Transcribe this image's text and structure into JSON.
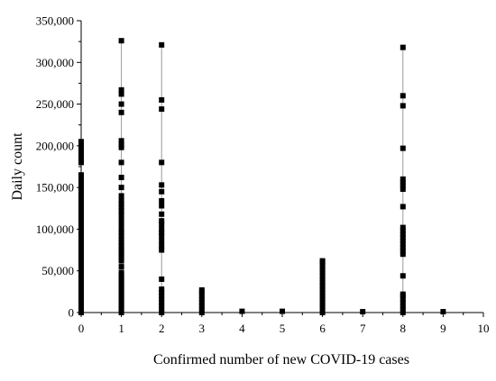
{
  "chart_data": {
    "type": "scatter",
    "title": "",
    "xlabel": "Confirmed number of new COVID-19 cases",
    "ylabel": "Daily count",
    "xlim": [
      0,
      10
    ],
    "ylim": [
      0,
      350000
    ],
    "x_ticks": [
      0,
      1,
      2,
      3,
      4,
      5,
      6,
      7,
      8,
      9,
      10
    ],
    "y_ticks": [
      0,
      50000,
      100000,
      150000,
      200000,
      250000,
      300000,
      350000
    ],
    "x_tick_labels": [
      "0",
      "1",
      "2",
      "3",
      "4",
      "5",
      "6",
      "7",
      "8",
      "9",
      "10"
    ],
    "y_tick_labels": [
      "0",
      "50,000",
      "100,000",
      "150,000",
      "200,000",
      "250,000",
      "300,000",
      "350,000"
    ],
    "grid": false,
    "legend": "none",
    "marker": "square",
    "marker_color": "#000000",
    "range_line_color": "#9a9a9a",
    "columns": [
      {
        "x": 0,
        "y": [
          0,
          5000,
          10000,
          15000,
          20000,
          25000,
          30000,
          35000,
          40000,
          45000,
          50000,
          55000,
          60000,
          65000,
          70000,
          75000,
          80000,
          85000,
          90000,
          95000,
          100000,
          105000,
          110000,
          115000,
          120000,
          125000,
          130000,
          135000,
          140000,
          145000,
          150000,
          155000,
          160000,
          165000,
          180000,
          185000,
          190000,
          195000,
          200000,
          205000
        ]
      },
      {
        "x": 1,
        "y": [
          0,
          3000,
          6000,
          9000,
          12000,
          15000,
          18000,
          21000,
          24000,
          27000,
          30000,
          33000,
          36000,
          39000,
          42000,
          45000,
          48000,
          55000,
          62000,
          66000,
          70000,
          73000,
          76000,
          80000,
          84000,
          88000,
          92000,
          96000,
          100000,
          106000,
          112000,
          118000,
          122000,
          126000,
          130000,
          134000,
          140000,
          150000,
          162000,
          180000,
          198000,
          201000,
          206000,
          240000,
          250000,
          262000,
          267000,
          326000
        ]
      },
      {
        "x": 2,
        "y": [
          0,
          4000,
          8000,
          12000,
          16000,
          20000,
          24000,
          28000,
          40000,
          75000,
          80000,
          86000,
          92000,
          96000,
          100000,
          106000,
          110000,
          118000,
          128000,
          134000,
          145000,
          153000,
          180000,
          244000,
          255000,
          321000
        ]
      },
      {
        "x": 3,
        "y": [
          0,
          4000,
          8000,
          12000,
          16000,
          20000,
          24000,
          27000
        ]
      },
      {
        "x": 4,
        "y": [
          1500
        ]
      },
      {
        "x": 5,
        "y": [
          1500
        ]
      },
      {
        "x": 6,
        "y": [
          0,
          4000,
          8000,
          12000,
          16000,
          20000,
          24000,
          28000,
          32000,
          36000,
          40000,
          44000,
          48000,
          52000,
          56000,
          60000,
          62000
        ]
      },
      {
        "x": 7,
        "y": [
          1000
        ]
      },
      {
        "x": 8,
        "y": [
          0,
          4000,
          8000,
          12000,
          16000,
          20000,
          22000,
          44000,
          70000,
          74000,
          78000,
          82000,
          86000,
          90000,
          94000,
          98000,
          102000,
          127000,
          148000,
          152000,
          156000,
          160000,
          197000,
          248000,
          260000,
          318000
        ]
      },
      {
        "x": 9,
        "y": [
          1000
        ]
      }
    ]
  }
}
